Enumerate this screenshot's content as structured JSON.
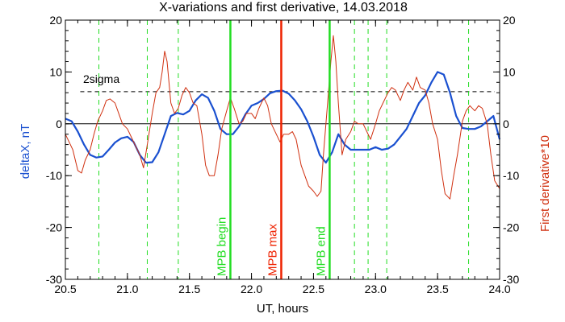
{
  "chart_data": {
    "type": "line",
    "title": "X-variations and first derivative, 14.03.2018",
    "xlabel": "UT, hours",
    "ylabel_left": "deltaX, nT",
    "ylabel_right": "First derivative*10",
    "xlim": [
      20.5,
      24.0
    ],
    "ylim": [
      -30,
      20
    ],
    "x_ticks": [
      "20.5",
      "21.0",
      "21.5",
      "22.0",
      "22.5",
      "23.0",
      "23.5",
      "24.0"
    ],
    "y_ticks": [
      "-30",
      "-20",
      "-10",
      "0",
      "10",
      "20"
    ],
    "colors": {
      "deltaX": "#1a50d0",
      "derivative": "#d03010",
      "green": "#22dd22",
      "red_marker": "#ee2200",
      "axis_left_label": "#1a50d0",
      "axis_right_label": "#d03010"
    },
    "threshold": {
      "label": "2sigma",
      "value": 6.2
    },
    "zero_line": 0,
    "dashed_green_lines": [
      20.77,
      21.16,
      21.41,
      22.83,
      22.94,
      23.09,
      23.75
    ],
    "markers": [
      {
        "label": "MPB begin",
        "x": 21.83,
        "color": "green"
      },
      {
        "label": "MPB max",
        "x": 22.24,
        "color": "red_marker"
      },
      {
        "label": "MPB end",
        "x": 22.63,
        "color": "green"
      }
    ],
    "series": [
      {
        "key": "deltaX",
        "x": [
          20.5,
          20.55,
          20.6,
          20.65,
          20.7,
          20.75,
          20.8,
          20.85,
          20.9,
          20.95,
          21.0,
          21.05,
          21.1,
          21.15,
          21.2,
          21.25,
          21.3,
          21.35,
          21.4,
          21.45,
          21.5,
          21.55,
          21.6,
          21.65,
          21.7,
          21.75,
          21.8,
          21.85,
          21.9,
          21.95,
          22.0,
          22.05,
          22.1,
          22.15,
          22.2,
          22.25,
          22.3,
          22.35,
          22.4,
          22.45,
          22.5,
          22.55,
          22.6,
          22.65,
          22.7,
          22.75,
          22.8,
          22.85,
          22.9,
          22.95,
          23.0,
          23.05,
          23.1,
          23.15,
          23.2,
          23.25,
          23.3,
          23.35,
          23.4,
          23.45,
          23.5,
          23.55,
          23.6,
          23.65,
          23.7,
          23.75,
          23.8,
          23.85,
          23.9,
          23.95,
          24.0
        ],
        "values": [
          1.0,
          0.5,
          -1.5,
          -4.0,
          -6.0,
          -6.5,
          -6.3,
          -5.0,
          -3.6,
          -2.8,
          -2.5,
          -3.5,
          -6.0,
          -7.5,
          -7.4,
          -5.5,
          -2.0,
          1.5,
          2.1,
          1.8,
          2.5,
          4.5,
          5.7,
          5.0,
          2.5,
          -1.0,
          -2.0,
          -2.0,
          -0.5,
          1.8,
          3.5,
          4.0,
          4.8,
          5.9,
          6.3,
          6.4,
          5.8,
          4.5,
          2.8,
          0.5,
          -2.5,
          -6.0,
          -7.5,
          -5.5,
          -2.0,
          -4.0,
          -5.0,
          -5.0,
          -5.0,
          -5.0,
          -4.5,
          -5.0,
          -4.8,
          -4.0,
          -2.5,
          -1.0,
          1.5,
          4.0,
          5.5,
          8.0,
          10.0,
          9.5,
          6.0,
          1.5,
          -0.8,
          -1.0,
          -1.0,
          -0.5,
          0.5,
          1.5,
          -3.0
        ]
      },
      {
        "key": "derivative",
        "x": [
          20.5,
          20.53,
          20.56,
          20.6,
          20.63,
          20.66,
          20.7,
          20.73,
          20.76,
          20.8,
          20.83,
          20.86,
          20.9,
          20.93,
          20.96,
          21.0,
          21.03,
          21.06,
          21.1,
          21.13,
          21.16,
          21.2,
          21.23,
          21.26,
          21.28,
          21.3,
          21.32,
          21.35,
          21.38,
          21.41,
          21.44,
          21.47,
          21.5,
          21.53,
          21.56,
          21.6,
          21.63,
          21.66,
          21.7,
          21.73,
          21.76,
          21.8,
          21.83,
          21.86,
          21.9,
          21.93,
          21.96,
          22.0,
          22.03,
          22.06,
          22.1,
          22.13,
          22.16,
          22.2,
          22.23,
          22.26,
          22.3,
          22.33,
          22.36,
          22.4,
          22.43,
          22.46,
          22.5,
          22.53,
          22.56,
          22.58,
          22.6,
          22.62,
          22.64,
          22.66,
          22.68,
          22.7,
          22.73,
          22.76,
          22.8,
          22.83,
          22.86,
          22.9,
          22.93,
          22.96,
          23.0,
          23.03,
          23.06,
          23.1,
          23.13,
          23.16,
          23.2,
          23.23,
          23.26,
          23.3,
          23.33,
          23.36,
          23.4,
          23.43,
          23.46,
          23.5,
          23.53,
          23.56,
          23.6,
          23.63,
          23.66,
          23.7,
          23.73,
          23.76,
          23.8,
          23.83,
          23.86,
          23.9,
          23.93,
          23.96,
          24.0
        ],
        "values": [
          -2.0,
          -3.5,
          -5.0,
          -9.0,
          -9.5,
          -7.0,
          -5.0,
          -2.0,
          0.5,
          2.5,
          4.5,
          4.8,
          4.0,
          2.0,
          0.0,
          -1.0,
          -2.5,
          -4.0,
          -6.0,
          -8.5,
          -4.0,
          2.0,
          6.0,
          7.0,
          10.0,
          14.0,
          12.0,
          4.0,
          2.0,
          3.0,
          5.5,
          7.0,
          6.0,
          4.0,
          3.5,
          -2.0,
          -8.0,
          -10.0,
          -10.0,
          -6.0,
          -1.0,
          2.5,
          5.0,
          3.0,
          0.0,
          0.5,
          2.0,
          2.0,
          1.0,
          3.0,
          5.0,
          3.5,
          0.0,
          -2.0,
          -3.5,
          -2.0,
          -2.0,
          -1.5,
          -3.0,
          -8.0,
          -10.0,
          -12.0,
          -13.0,
          -14.0,
          -13.0,
          -6.0,
          0.0,
          6.0,
          12.0,
          17.0,
          12.0,
          4.0,
          -6.0,
          -3.0,
          -1.5,
          0.5,
          0.0,
          0.0,
          -1.5,
          -3.0,
          0.0,
          2.5,
          4.0,
          6.0,
          7.0,
          6.5,
          4.5,
          6.5,
          8.0,
          6.5,
          9.0,
          7.0,
          6.5,
          4.0,
          0.0,
          -3.0,
          -9.0,
          -13.5,
          -14.5,
          -10.0,
          -6.0,
          0.5,
          2.5,
          3.5,
          2.5,
          3.5,
          3.0,
          0.0,
          -6.0,
          -11.0,
          -12.5
        ]
      }
    ]
  }
}
